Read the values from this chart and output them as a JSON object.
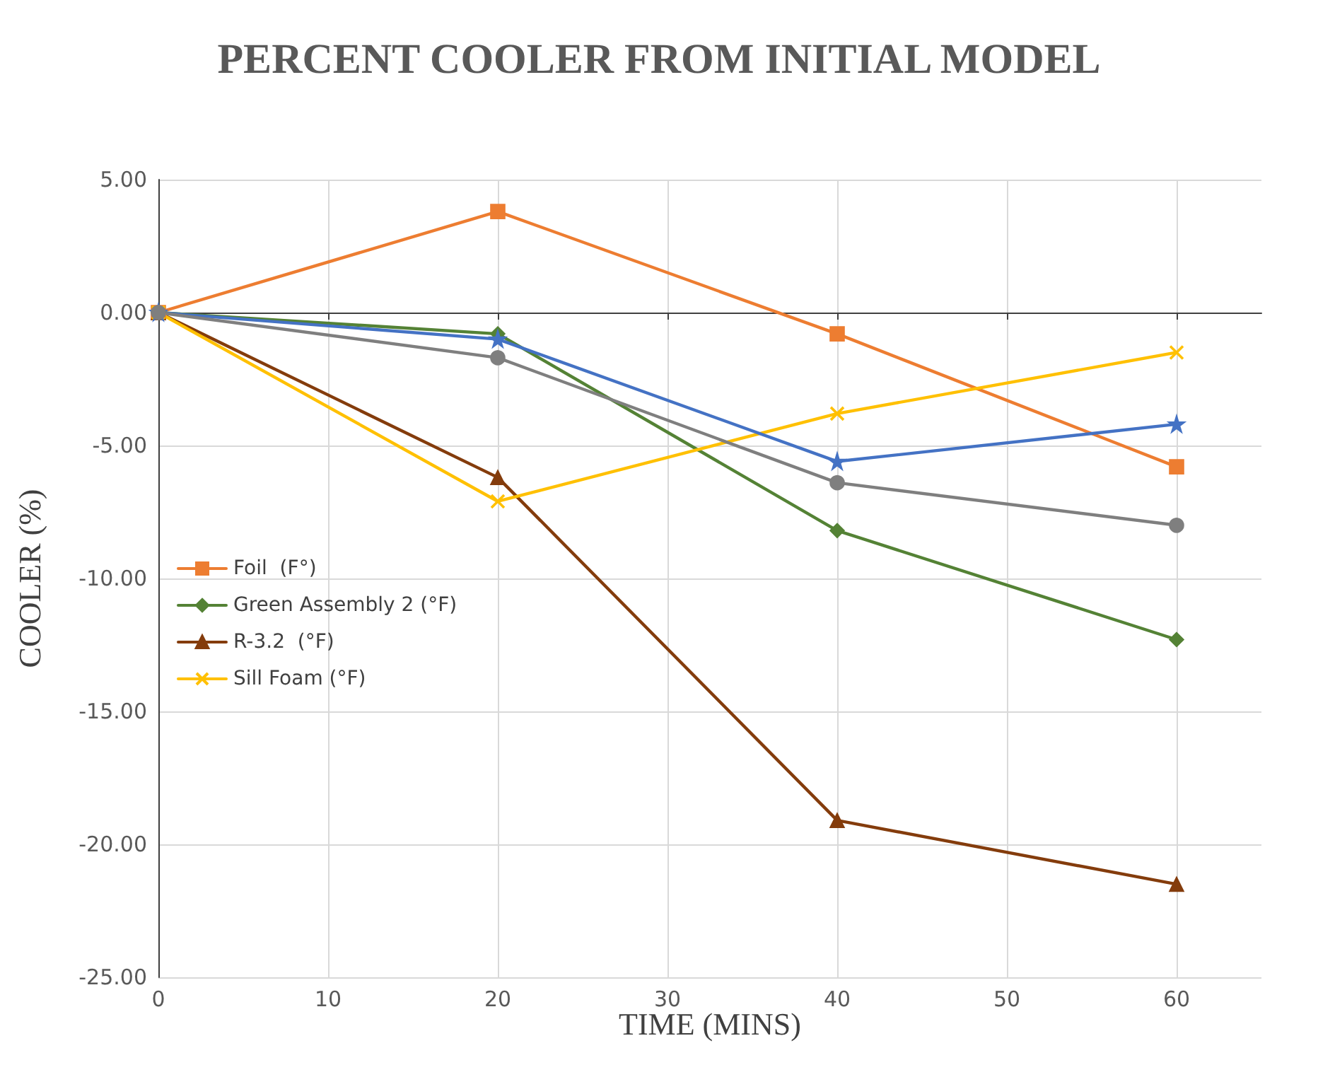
{
  "chart_data": {
    "type": "line",
    "title": "PERCENT COOLER FROM INITIAL MODEL",
    "xlabel": "TIME (MINS)",
    "ylabel": "COOLER (%)",
    "x": [
      0,
      20,
      40,
      60
    ],
    "series": [
      {
        "name": "Foil  (F°)",
        "color": "#ed7d31",
        "marker": "square",
        "values": [
          0,
          3.8,
          -0.8,
          -5.8
        ]
      },
      {
        "name": "Green Assembly 2 (°F)",
        "color": "#548235",
        "marker": "diamond",
        "values": [
          0,
          -0.8,
          -8.2,
          -12.3
        ]
      },
      {
        "name": "R-3.2  (°F)",
        "color": "#843c0c",
        "marker": "triangle",
        "values": [
          0,
          -6.2,
          -19.1,
          -21.5
        ]
      },
      {
        "name": "Sill Foam (°F)",
        "color": "#ffc000",
        "marker": "cross",
        "values": [
          0,
          -7.1,
          -3.8,
          -1.5
        ]
      },
      {
        "color": "#4472c4",
        "marker": "star",
        "values": [
          0,
          -1,
          -5.6,
          -4.2
        ]
      },
      {
        "color": "#7f7f7f",
        "marker": "circle",
        "values": [
          0,
          -1.7,
          -6.4,
          -8
        ]
      }
    ],
    "xlim": [
      0,
      65
    ],
    "xticks": [
      0,
      10,
      20,
      30,
      40,
      50,
      60
    ],
    "ylim": [
      -25,
      5
    ],
    "yticks": [
      {
        "value": -25,
        "label": "-25.00"
      },
      {
        "value": -20,
        "label": "-20.00"
      },
      {
        "value": -15,
        "label": "-15.00"
      },
      {
        "value": -10,
        "label": "-10.00"
      },
      {
        "value": -5,
        "label": "-5.00"
      },
      {
        "value": 0,
        "label": "0.00"
      },
      {
        "value": 5,
        "label": "5.00"
      }
    ],
    "grid": true,
    "legend": "left",
    "line_style": "solid"
  }
}
